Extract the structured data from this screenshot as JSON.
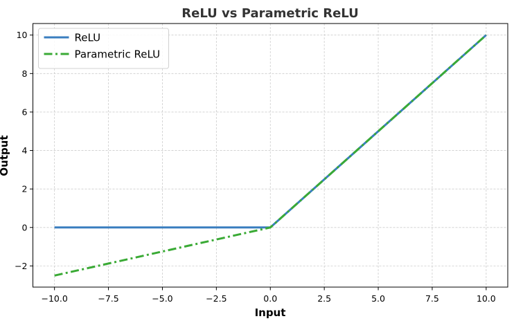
{
  "chart_data": {
    "type": "line",
    "title": "ReLU vs Parametric ReLU",
    "xlabel": "Input",
    "ylabel": "Output",
    "xlim": [
      -11.0,
      11.0
    ],
    "ylim": [
      -3.1,
      10.6
    ],
    "xticks": [
      -10.0,
      -7.5,
      -5.0,
      -2.5,
      0.0,
      2.5,
      5.0,
      7.5,
      10.0
    ],
    "xtick_labels": [
      "−10.0",
      "−7.5",
      "−5.0",
      "−2.5",
      "0.0",
      "2.5",
      "5.0",
      "7.5",
      "10.0"
    ],
    "yticks": [
      -2,
      0,
      2,
      4,
      6,
      8,
      10
    ],
    "ytick_labels": [
      "−2",
      "0",
      "2",
      "4",
      "6",
      "8",
      "10"
    ],
    "grid": true,
    "legend_position": "top-left",
    "series": [
      {
        "name": "ReLU",
        "color": "#3a7ebf",
        "line_style": "solid",
        "x": [
          -10.0,
          0.0,
          10.0
        ],
        "y": [
          0.0,
          0.0,
          10.0
        ]
      },
      {
        "name": "Parametric ReLU",
        "color": "#3aaa35",
        "line_style": "dashdot",
        "x": [
          -10.0,
          0.0,
          10.0
        ],
        "y": [
          -2.5,
          0.0,
          10.0
        ]
      }
    ]
  }
}
